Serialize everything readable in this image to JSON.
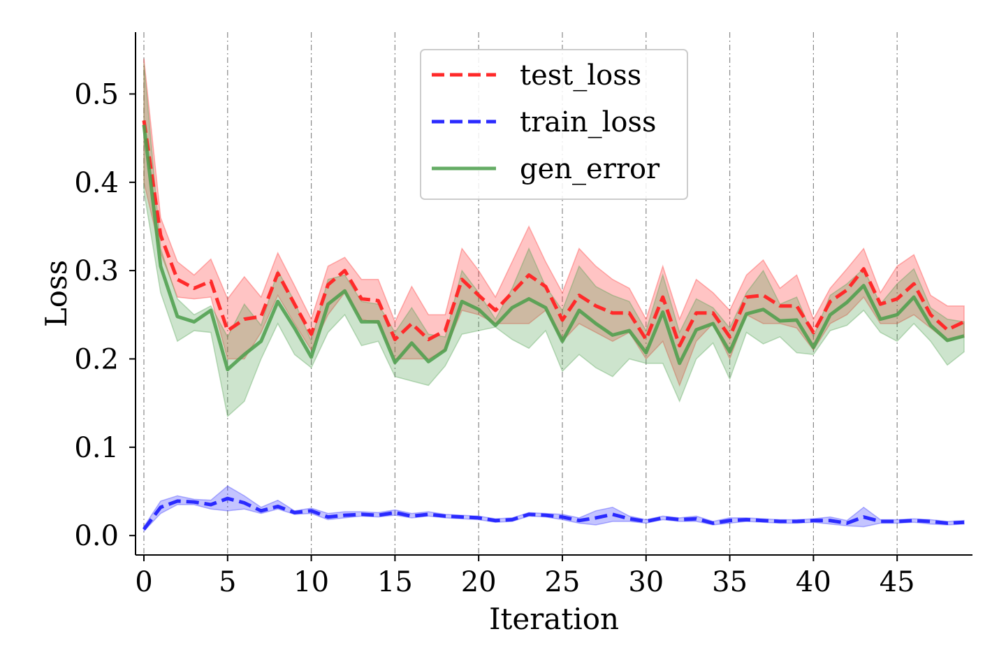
{
  "chart_data": {
    "type": "line",
    "title": "",
    "xlabel": "Iteration",
    "ylabel": "Loss",
    "xlim": [
      -0.5,
      49.5
    ],
    "ylim": [
      -0.022,
      0.57
    ],
    "xticks": [
      0,
      5,
      10,
      15,
      20,
      25,
      30,
      35,
      40,
      45
    ],
    "yticks": [
      0.0,
      0.1,
      0.2,
      0.3,
      0.4,
      0.5
    ],
    "grid": "vertical dash-dot at x ticks",
    "legend_position": "top-center",
    "x": [
      0,
      1,
      2,
      3,
      4,
      5,
      6,
      7,
      8,
      9,
      10,
      11,
      12,
      13,
      14,
      15,
      16,
      17,
      18,
      19,
      20,
      21,
      22,
      23,
      24,
      25,
      26,
      27,
      28,
      29,
      30,
      31,
      32,
      33,
      34,
      35,
      36,
      37,
      38,
      39,
      40,
      41,
      42,
      43,
      44,
      45,
      46,
      47,
      48,
      49
    ],
    "series": [
      {
        "name": "test_loss",
        "color": "#ff2a2a",
        "style": "dashed",
        "values": [
          0.47,
          0.34,
          0.29,
          0.28,
          0.288,
          0.232,
          0.245,
          0.248,
          0.297,
          0.262,
          0.228,
          0.284,
          0.3,
          0.268,
          0.266,
          0.222,
          0.24,
          0.222,
          0.232,
          0.29,
          0.272,
          0.255,
          0.275,
          0.295,
          0.282,
          0.244,
          0.272,
          0.26,
          0.252,
          0.252,
          0.222,
          0.27,
          0.215,
          0.252,
          0.252,
          0.225,
          0.27,
          0.272,
          0.26,
          0.26,
          0.23,
          0.265,
          0.278,
          0.302,
          0.262,
          0.268,
          0.285,
          0.25,
          0.233,
          0.242
        ],
        "lower": [
          0.4,
          0.32,
          0.27,
          0.268,
          0.27,
          0.2,
          0.2,
          0.23,
          0.272,
          0.24,
          0.21,
          0.25,
          0.275,
          0.245,
          0.24,
          0.2,
          0.2,
          0.2,
          0.21,
          0.255,
          0.25,
          0.24,
          0.24,
          0.24,
          0.255,
          0.22,
          0.24,
          0.23,
          0.22,
          0.23,
          0.2,
          0.22,
          0.17,
          0.22,
          0.24,
          0.2,
          0.25,
          0.24,
          0.24,
          0.235,
          0.21,
          0.24,
          0.25,
          0.27,
          0.24,
          0.24,
          0.25,
          0.235,
          0.22,
          0.225
        ],
        "upper": [
          0.54,
          0.36,
          0.31,
          0.295,
          0.313,
          0.268,
          0.293,
          0.27,
          0.32,
          0.283,
          0.245,
          0.305,
          0.315,
          0.29,
          0.29,
          0.242,
          0.282,
          0.25,
          0.25,
          0.325,
          0.3,
          0.27,
          0.31,
          0.35,
          0.31,
          0.275,
          0.325,
          0.305,
          0.29,
          0.28,
          0.245,
          0.305,
          0.245,
          0.29,
          0.275,
          0.255,
          0.295,
          0.312,
          0.28,
          0.295,
          0.245,
          0.28,
          0.302,
          0.325,
          0.275,
          0.305,
          0.318,
          0.272,
          0.26,
          0.26
        ]
      },
      {
        "name": "train_loss",
        "color": "#2a2aff",
        "style": "dashed",
        "values": [
          0.007,
          0.032,
          0.039,
          0.038,
          0.035,
          0.042,
          0.037,
          0.028,
          0.033,
          0.026,
          0.028,
          0.021,
          0.023,
          0.024,
          0.023,
          0.026,
          0.022,
          0.024,
          0.022,
          0.021,
          0.02,
          0.017,
          0.018,
          0.024,
          0.023,
          0.021,
          0.017,
          0.02,
          0.024,
          0.019,
          0.016,
          0.02,
          0.018,
          0.019,
          0.014,
          0.017,
          0.018,
          0.017,
          0.016,
          0.016,
          0.017,
          0.017,
          0.014,
          0.021,
          0.016,
          0.016,
          0.017,
          0.016,
          0.014,
          0.015
        ],
        "lower": [
          0.005,
          0.025,
          0.035,
          0.035,
          0.03,
          0.028,
          0.03,
          0.025,
          0.03,
          0.024,
          0.025,
          0.018,
          0.02,
          0.022,
          0.021,
          0.023,
          0.02,
          0.022,
          0.02,
          0.019,
          0.018,
          0.015,
          0.016,
          0.022,
          0.021,
          0.018,
          0.014,
          0.012,
          0.016,
          0.016,
          0.014,
          0.018,
          0.016,
          0.016,
          0.012,
          0.014,
          0.016,
          0.015,
          0.014,
          0.014,
          0.015,
          0.013,
          0.011,
          0.01,
          0.014,
          0.014,
          0.015,
          0.013,
          0.012,
          0.013
        ],
        "upper": [
          0.01,
          0.039,
          0.045,
          0.041,
          0.04,
          0.056,
          0.045,
          0.032,
          0.04,
          0.028,
          0.031,
          0.025,
          0.027,
          0.027,
          0.026,
          0.029,
          0.025,
          0.027,
          0.024,
          0.023,
          0.022,
          0.019,
          0.02,
          0.026,
          0.025,
          0.024,
          0.02,
          0.028,
          0.032,
          0.022,
          0.018,
          0.022,
          0.02,
          0.022,
          0.016,
          0.02,
          0.02,
          0.019,
          0.018,
          0.018,
          0.019,
          0.021,
          0.017,
          0.032,
          0.018,
          0.018,
          0.019,
          0.018,
          0.016,
          0.017
        ]
      },
      {
        "name": "gen_error",
        "color": "#4a9e4a",
        "style": "solid",
        "values": [
          0.465,
          0.305,
          0.248,
          0.242,
          0.255,
          0.188,
          0.205,
          0.22,
          0.265,
          0.235,
          0.202,
          0.262,
          0.277,
          0.242,
          0.242,
          0.196,
          0.218,
          0.197,
          0.21,
          0.265,
          0.256,
          0.238,
          0.258,
          0.268,
          0.258,
          0.22,
          0.255,
          0.24,
          0.227,
          0.232,
          0.207,
          0.253,
          0.195,
          0.233,
          0.24,
          0.208,
          0.251,
          0.256,
          0.243,
          0.244,
          0.213,
          0.25,
          0.264,
          0.283,
          0.245,
          0.25,
          0.27,
          0.238,
          0.221,
          0.226
        ],
        "lower": [
          0.39,
          0.275,
          0.22,
          0.232,
          0.23,
          0.135,
          0.152,
          0.2,
          0.24,
          0.205,
          0.19,
          0.23,
          0.25,
          0.215,
          0.22,
          0.18,
          0.175,
          0.17,
          0.192,
          0.228,
          0.232,
          0.236,
          0.222,
          0.212,
          0.232,
          0.186,
          0.205,
          0.19,
          0.18,
          0.2,
          0.195,
          0.195,
          0.152,
          0.2,
          0.218,
          0.177,
          0.23,
          0.217,
          0.225,
          0.207,
          0.205,
          0.232,
          0.238,
          0.255,
          0.23,
          0.22,
          0.24,
          0.22,
          0.193,
          0.208
        ],
        "upper": [
          0.535,
          0.325,
          0.268,
          0.25,
          0.26,
          0.225,
          0.262,
          0.238,
          0.3,
          0.265,
          0.22,
          0.29,
          0.295,
          0.265,
          0.262,
          0.23,
          0.258,
          0.228,
          0.225,
          0.3,
          0.275,
          0.245,
          0.28,
          0.325,
          0.282,
          0.255,
          0.305,
          0.282,
          0.272,
          0.265,
          0.232,
          0.295,
          0.23,
          0.268,
          0.258,
          0.235,
          0.275,
          0.3,
          0.262,
          0.27,
          0.225,
          0.272,
          0.285,
          0.302,
          0.262,
          0.285,
          0.302,
          0.258,
          0.245,
          0.242
        ]
      }
    ]
  }
}
